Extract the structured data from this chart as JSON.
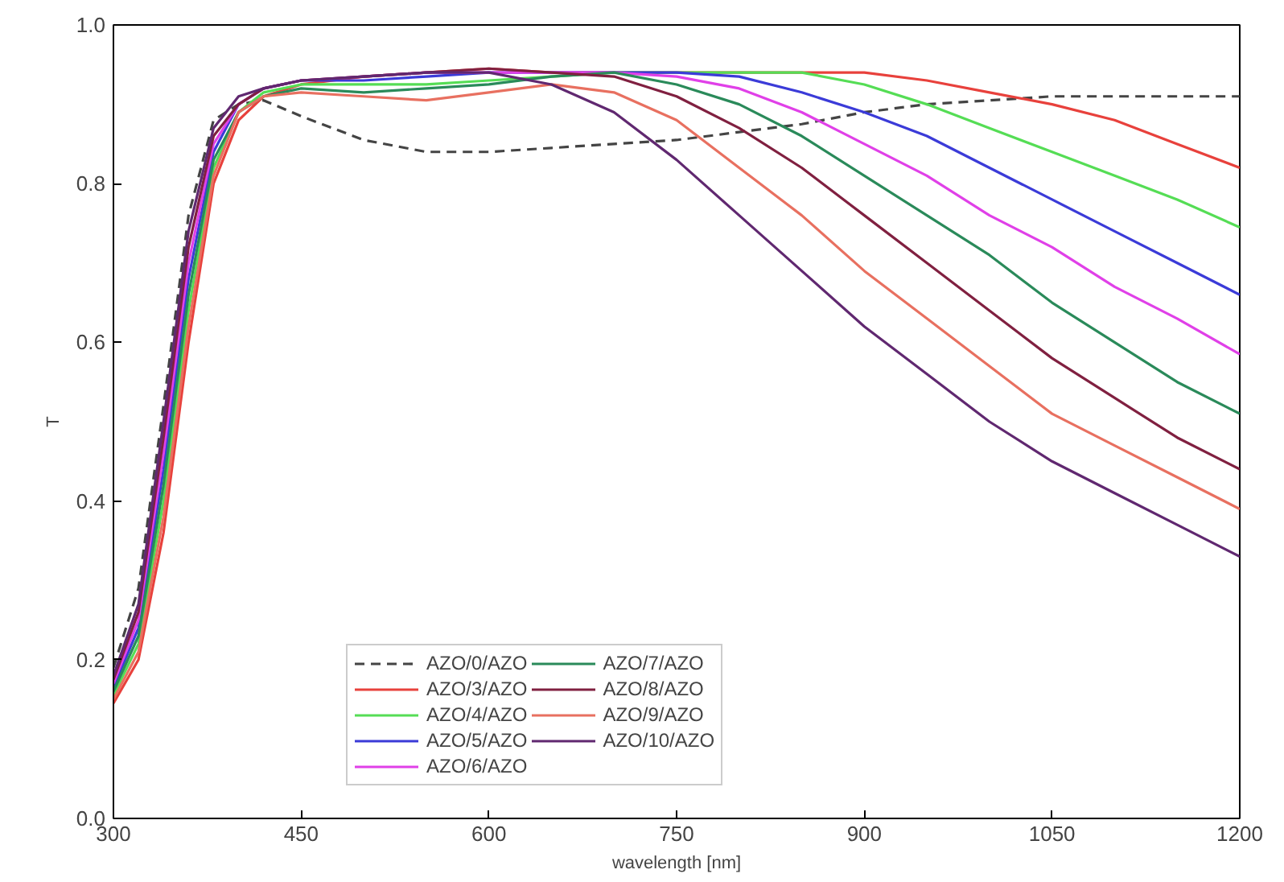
{
  "chart_data": {
    "type": "line",
    "xlabel": "wavelength [nm]",
    "ylabel": "T",
    "xlim": [
      300,
      1200
    ],
    "xticks": [
      300,
      450,
      600,
      750,
      900,
      1050,
      1200
    ],
    "ylim": [
      0,
      1
    ],
    "yticks": [
      {
        "value": 0,
        "label": "0.0"
      },
      0.2,
      0.4,
      0.6,
      0.8,
      {
        "value": 1,
        "label": "1.0"
      }
    ],
    "grid": false,
    "legend": "bottom",
    "line_style": "solid",
    "marker": "none",
    "series": [
      {
        "name": "AZO/0/AZO",
        "color": "#444444",
        "line_style": "dashed",
        "x": [
          300,
          320,
          340,
          360,
          380,
          400,
          420,
          450,
          500,
          550,
          600,
          650,
          700,
          750,
          800,
          850,
          900,
          950,
          1000,
          1050,
          1100,
          1150,
          1200
        ],
        "values": [
          0.19,
          0.29,
          0.52,
          0.76,
          0.88,
          0.9,
          0.905,
          0.885,
          0.855,
          0.84,
          0.84,
          0.845,
          0.85,
          0.855,
          0.865,
          0.875,
          0.89,
          0.9,
          0.905,
          0.91,
          0.91,
          0.91,
          0.91
        ]
      },
      {
        "name": "AZO/3/AZO",
        "color": "#e8413c",
        "x": [
          300,
          320,
          340,
          360,
          380,
          400,
          420,
          450,
          500,
          550,
          600,
          650,
          700,
          750,
          800,
          850,
          900,
          950,
          1000,
          1050,
          1100,
          1150,
          1200
        ],
        "values": [
          0.145,
          0.2,
          0.36,
          0.6,
          0.8,
          0.88,
          0.91,
          0.925,
          0.935,
          0.94,
          0.945,
          0.94,
          0.94,
          0.94,
          0.94,
          0.94,
          0.94,
          0.93,
          0.915,
          0.9,
          0.88,
          0.85,
          0.82
        ]
      },
      {
        "name": "AZO/4/AZO",
        "color": "#55dd55",
        "x": [
          300,
          320,
          340,
          360,
          380,
          400,
          420,
          450,
          500,
          550,
          600,
          650,
          700,
          750,
          800,
          850,
          900,
          950,
          1000,
          1050,
          1100,
          1150,
          1200
        ],
        "values": [
          0.155,
          0.22,
          0.4,
          0.64,
          0.82,
          0.89,
          0.915,
          0.925,
          0.925,
          0.925,
          0.93,
          0.935,
          0.94,
          0.94,
          0.94,
          0.94,
          0.925,
          0.9,
          0.87,
          0.84,
          0.81,
          0.78,
          0.745
        ]
      },
      {
        "name": "AZO/5/AZO",
        "color": "#3b3bd8",
        "x": [
          300,
          320,
          340,
          360,
          380,
          400,
          420,
          450,
          500,
          550,
          600,
          650,
          700,
          750,
          800,
          850,
          900,
          950,
          1000,
          1050,
          1100,
          1150,
          1200
        ],
        "values": [
          0.165,
          0.24,
          0.44,
          0.68,
          0.84,
          0.9,
          0.92,
          0.93,
          0.93,
          0.935,
          0.94,
          0.94,
          0.94,
          0.94,
          0.935,
          0.915,
          0.89,
          0.86,
          0.82,
          0.78,
          0.74,
          0.7,
          0.66
        ]
      },
      {
        "name": "AZO/6/AZO",
        "color": "#e040e8",
        "x": [
          300,
          320,
          340,
          360,
          380,
          400,
          420,
          450,
          500,
          550,
          600,
          650,
          700,
          750,
          800,
          850,
          900,
          950,
          1000,
          1050,
          1100,
          1150,
          1200
        ],
        "values": [
          0.17,
          0.25,
          0.46,
          0.7,
          0.85,
          0.9,
          0.92,
          0.93,
          0.935,
          0.94,
          0.94,
          0.94,
          0.94,
          0.935,
          0.92,
          0.89,
          0.85,
          0.81,
          0.76,
          0.72,
          0.67,
          0.63,
          0.585
        ]
      },
      {
        "name": "AZO/7/AZO",
        "color": "#2a8a5a",
        "x": [
          300,
          320,
          340,
          360,
          380,
          400,
          420,
          450,
          500,
          550,
          600,
          650,
          700,
          750,
          800,
          850,
          900,
          950,
          1000,
          1050,
          1100,
          1150,
          1200
        ],
        "values": [
          0.16,
          0.23,
          0.42,
          0.66,
          0.83,
          0.89,
          0.91,
          0.92,
          0.915,
          0.92,
          0.925,
          0.935,
          0.94,
          0.925,
          0.9,
          0.86,
          0.81,
          0.76,
          0.71,
          0.65,
          0.6,
          0.55,
          0.51
        ]
      },
      {
        "name": "AZO/8/AZO",
        "color": "#802040",
        "x": [
          300,
          320,
          340,
          360,
          380,
          400,
          420,
          450,
          500,
          550,
          600,
          650,
          700,
          750,
          800,
          850,
          900,
          950,
          1000,
          1050,
          1100,
          1150,
          1200
        ],
        "values": [
          0.175,
          0.26,
          0.48,
          0.72,
          0.86,
          0.9,
          0.92,
          0.93,
          0.935,
          0.94,
          0.945,
          0.94,
          0.935,
          0.91,
          0.87,
          0.82,
          0.76,
          0.7,
          0.64,
          0.58,
          0.53,
          0.48,
          0.44
        ]
      },
      {
        "name": "AZO/9/AZO",
        "color": "#e87060",
        "x": [
          300,
          320,
          340,
          360,
          380,
          400,
          420,
          450,
          500,
          550,
          600,
          650,
          700,
          750,
          800,
          850,
          900,
          950,
          1000,
          1050,
          1100,
          1150,
          1200
        ],
        "values": [
          0.15,
          0.21,
          0.38,
          0.62,
          0.81,
          0.89,
          0.91,
          0.915,
          0.91,
          0.905,
          0.915,
          0.925,
          0.915,
          0.88,
          0.82,
          0.76,
          0.69,
          0.63,
          0.57,
          0.51,
          0.47,
          0.43,
          0.39
        ]
      },
      {
        "name": "AZO/10/AZO",
        "color": "#602870",
        "x": [
          300,
          320,
          340,
          360,
          380,
          400,
          420,
          450,
          500,
          550,
          600,
          650,
          700,
          750,
          800,
          850,
          900,
          950,
          1000,
          1050,
          1100,
          1150,
          1200
        ],
        "values": [
          0.18,
          0.27,
          0.5,
          0.74,
          0.87,
          0.91,
          0.92,
          0.93,
          0.935,
          0.94,
          0.94,
          0.925,
          0.89,
          0.83,
          0.76,
          0.69,
          0.62,
          0.56,
          0.5,
          0.45,
          0.41,
          0.37,
          0.33
        ]
      }
    ]
  }
}
